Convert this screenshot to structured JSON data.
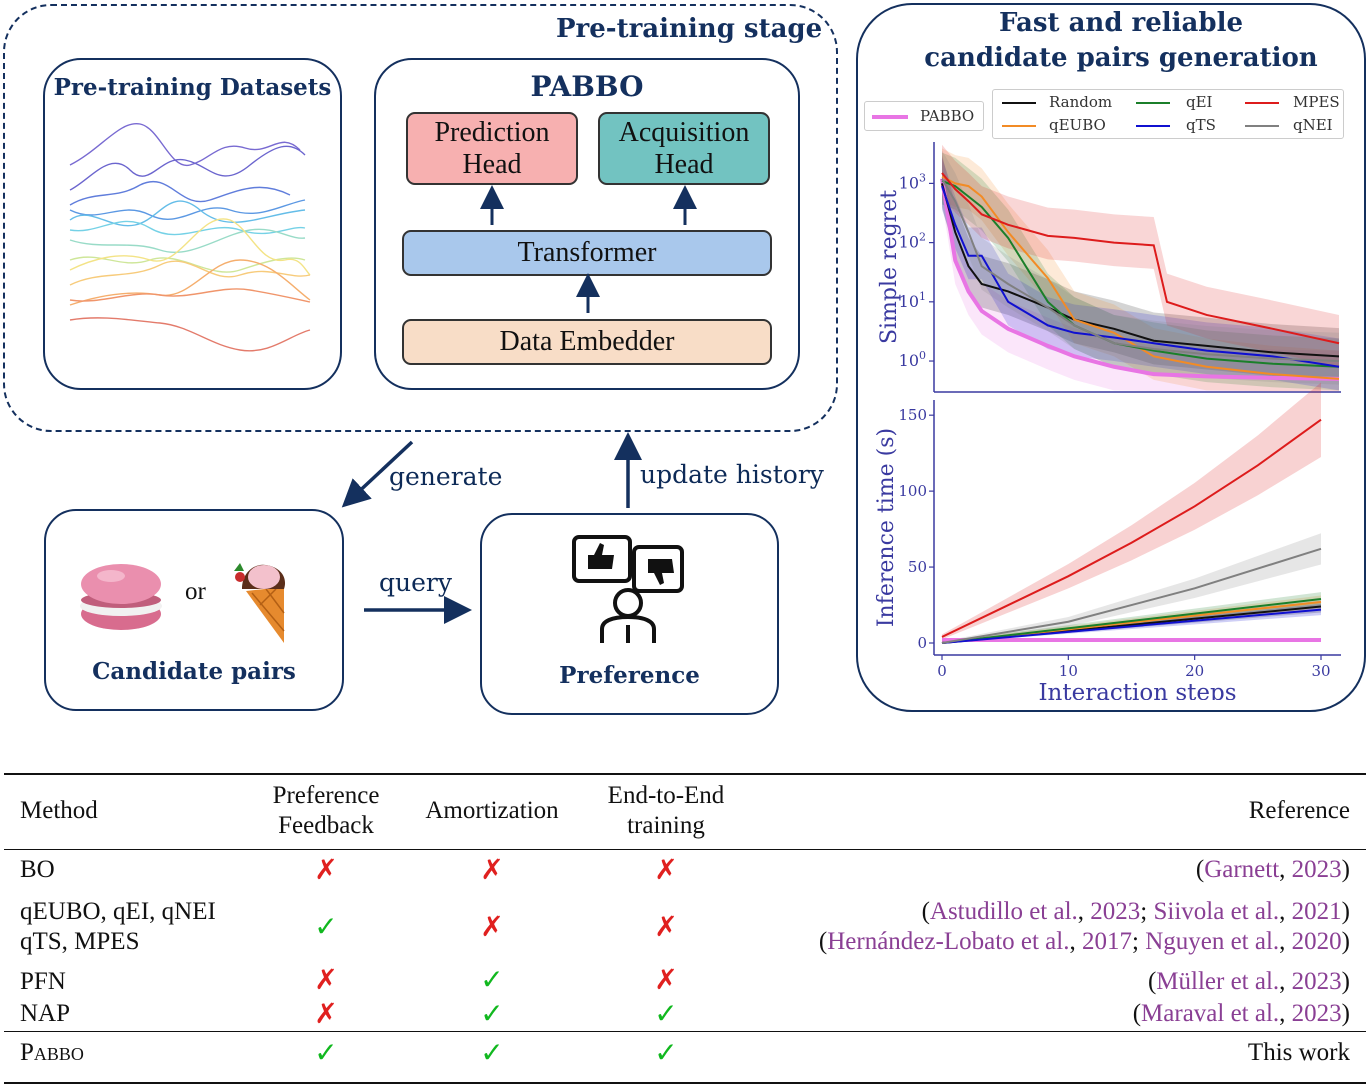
{
  "pretraining": {
    "stage_title": "Pre-training stage",
    "datasets_title": "Pre-training Datasets",
    "model_title": "PABBO",
    "prediction_head": [
      "Prediction",
      "Head"
    ],
    "acquisition_head": [
      "Acquisition",
      "Head"
    ],
    "transformer": "Transformer",
    "embedder": "Data Embedder"
  },
  "flow": {
    "generate": "generate",
    "update": "update history",
    "query": "query",
    "or": "or",
    "candidate_title": "Candidate pairs",
    "preference_title": "Preference"
  },
  "results_panel": {
    "title_line1": "Fast and reliable",
    "title_line2": "candidate pairs generation"
  },
  "chart_data": [
    {
      "type": "line",
      "ylabel": "Simple regret",
      "yscale": "log",
      "yticks": [
        "10^0",
        "10^1",
        "10^2",
        "10^3"
      ],
      "legend_position": "top",
      "series": [
        {
          "name": "PABBO",
          "color": "#e875e4",
          "x": [
            0,
            1,
            2,
            3,
            5,
            8,
            10,
            13,
            16,
            20,
            25,
            30
          ],
          "y": [
            1200,
            50,
            15,
            7,
            3.5,
            1.8,
            1.2,
            0.8,
            0.6,
            0.55,
            0.52,
            0.5
          ]
        },
        {
          "name": "Random",
          "color": "#111111",
          "x": [
            0,
            1,
            2,
            3,
            5,
            8,
            10,
            13,
            16,
            20,
            25,
            30
          ],
          "y": [
            1000,
            150,
            40,
            20,
            15,
            8,
            5,
            3.5,
            2.2,
            1.8,
            1.4,
            1.2
          ]
        },
        {
          "name": "qEUBO",
          "color": "#f28b25",
          "x": [
            0,
            1,
            2,
            3,
            5,
            8,
            10,
            13,
            16,
            20,
            25,
            30
          ],
          "y": [
            1300,
            1000,
            900,
            600,
            150,
            25,
            5,
            3,
            1.2,
            0.8,
            0.6,
            0.5
          ]
        },
        {
          "name": "qEI",
          "color": "#1b7f2a",
          "x": [
            0,
            1,
            2,
            3,
            5,
            8,
            10,
            13,
            16,
            20,
            25,
            30
          ],
          "y": [
            1100,
            900,
            600,
            400,
            120,
            10,
            4,
            2,
            1.5,
            1.1,
            0.9,
            0.8
          ]
        },
        {
          "name": "qTS",
          "color": "#1010d0",
          "x": [
            0,
            1,
            2,
            3,
            5,
            8,
            10,
            13,
            16,
            20,
            25,
            30
          ],
          "y": [
            900,
            200,
            60,
            60,
            10,
            4,
            3,
            2.5,
            2,
            1.5,
            1.2,
            0.8
          ]
        },
        {
          "name": "MPES",
          "color": "#dd1c1c",
          "x": [
            0,
            1,
            2,
            3,
            5,
            8,
            10,
            13,
            16,
            17,
            20,
            25,
            30
          ],
          "y": [
            1500,
            800,
            500,
            300,
            200,
            130,
            120,
            100,
            90,
            10,
            6,
            3.5,
            2
          ]
        },
        {
          "name": "qNEI",
          "color": "#808080",
          "x": [
            0,
            1,
            2,
            3,
            5,
            8,
            10,
            13,
            16,
            20,
            25,
            30
          ],
          "y": [
            1200,
            500,
            150,
            40,
            20,
            8,
            4,
            2,
            1.6,
            1.3,
            1.1,
            1
          ]
        }
      ]
    },
    {
      "type": "line",
      "xlabel": "Interaction steps",
      "ylabel": "Inference time (s)",
      "xlim": [
        0,
        30
      ],
      "ylim": [
        0,
        160
      ],
      "xticks": [
        0,
        10,
        20,
        30
      ],
      "yticks": [
        0,
        50,
        100,
        150
      ],
      "series": [
        {
          "name": "PABBO",
          "color": "#e875e4",
          "x": [
            0,
            30
          ],
          "y": [
            2,
            2
          ]
        },
        {
          "name": "Random",
          "color": "#111111",
          "x": [
            0,
            30
          ],
          "y": [
            0,
            24
          ]
        },
        {
          "name": "qEUBO",
          "color": "#f28b25",
          "x": [
            0,
            30
          ],
          "y": [
            0,
            27
          ]
        },
        {
          "name": "qEI",
          "color": "#1b7f2a",
          "x": [
            0,
            30
          ],
          "y": [
            0,
            29
          ]
        },
        {
          "name": "qTS",
          "color": "#1010d0",
          "x": [
            0,
            30
          ],
          "y": [
            0,
            22
          ]
        },
        {
          "name": "MPES",
          "color": "#dd1c1c",
          "x": [
            0,
            5,
            10,
            15,
            20,
            25,
            30
          ],
          "y": [
            4,
            24,
            44,
            66,
            90,
            117,
            147
          ]
        },
        {
          "name": "qNEI",
          "color": "#808080",
          "x": [
            0,
            10,
            20,
            30
          ],
          "y": [
            0,
            14,
            36,
            62
          ]
        }
      ]
    }
  ],
  "table": {
    "headers": {
      "method": "Method",
      "pref": [
        "Preference",
        "Feedback"
      ],
      "amort": "Amortization",
      "e2e": [
        "End-to-End",
        "training"
      ],
      "ref": "Reference"
    },
    "rows": [
      {
        "method": [
          "BO"
        ],
        "pref": "✗",
        "amort": "✗",
        "e2e": "✗",
        "ref_lines": [
          [
            [
              "(",
              "plain"
            ],
            [
              "Garnett",
              "ref"
            ],
            [
              ", ",
              "plain"
            ],
            [
              "2023",
              "ref"
            ],
            [
              ")",
              "plain"
            ]
          ]
        ]
      },
      {
        "method": [
          "qEUBO, qEI, qNEI",
          "qTS, MPES"
        ],
        "pref": "✓",
        "amort": "✗",
        "e2e": "✗",
        "ref_lines": [
          [
            [
              "(",
              "plain"
            ],
            [
              "Astudillo et al.",
              "ref"
            ],
            [
              ", ",
              "plain"
            ],
            [
              "2023",
              "ref"
            ],
            [
              "; ",
              "plain"
            ],
            [
              "Siivola et al.",
              "ref"
            ],
            [
              ", ",
              "plain"
            ],
            [
              "2021",
              "ref"
            ],
            [
              ")",
              "plain"
            ]
          ],
          [
            [
              "(",
              "plain"
            ],
            [
              "Hernández-Lobato et al.",
              "ref"
            ],
            [
              ", ",
              "plain"
            ],
            [
              "2017",
              "ref"
            ],
            [
              "; ",
              "plain"
            ],
            [
              "Nguyen et al.",
              "ref"
            ],
            [
              ", ",
              "plain"
            ],
            [
              "2020",
              "ref"
            ],
            [
              ")",
              "plain"
            ]
          ]
        ]
      },
      {
        "method": [
          "PFN"
        ],
        "pref": "✗",
        "amort": "✓",
        "e2e": "✗",
        "ref_lines": [
          [
            [
              "(",
              "plain"
            ],
            [
              "Müller et al.",
              "ref"
            ],
            [
              ", ",
              "plain"
            ],
            [
              "2023",
              "ref"
            ],
            [
              ")",
              "plain"
            ]
          ]
        ]
      },
      {
        "method": [
          "NAP"
        ],
        "pref": "✗",
        "amort": "✓",
        "e2e": "✓",
        "ref_lines": [
          [
            [
              "(",
              "plain"
            ],
            [
              "Maraval et al.",
              "ref"
            ],
            [
              ", ",
              "plain"
            ],
            [
              "2023",
              "ref"
            ],
            [
              ")",
              "plain"
            ]
          ]
        ]
      },
      {
        "method": [
          "Pabbo"
        ],
        "pref": "✓",
        "amort": "✓",
        "e2e": "✓",
        "ref_lines": [
          [
            [
              "This work",
              "plain"
            ]
          ]
        ]
      }
    ]
  }
}
